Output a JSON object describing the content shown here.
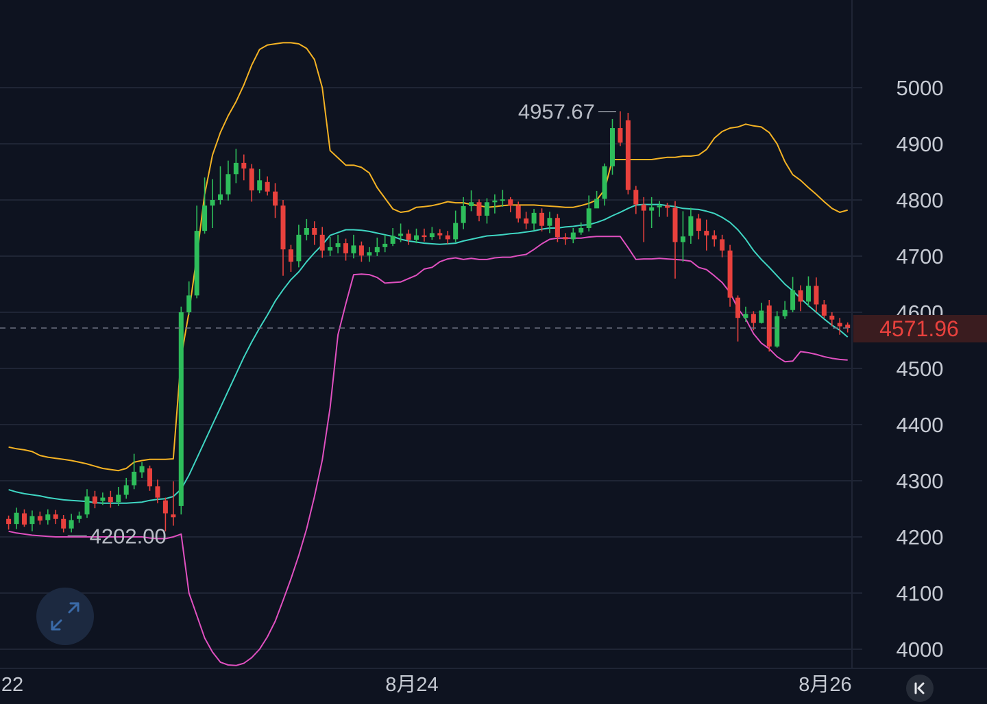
{
  "chart_data": {
    "type": "candlestick",
    "indicator": "Bollinger Bands",
    "y_ticks": [
      5000,
      4900,
      4800,
      4700,
      4600,
      4500,
      4400,
      4300,
      4200,
      4100,
      4000
    ],
    "ylim": [
      3965,
      5085
    ],
    "x_labels": [
      "22",
      "8月24",
      "8月26"
    ],
    "annotations": {
      "high": {
        "label": "4957.67",
        "value": 4957.67
      },
      "low": {
        "label": "4202.00",
        "value": 4202.0
      }
    },
    "last_price": {
      "label": "4571.96",
      "value": 4571.96
    },
    "grid": true,
    "colors": {
      "up": "#2ebd5b",
      "down": "#e8413d",
      "upper_band": "#f5b324",
      "middle_band": "#3fd6c3",
      "lower_band": "#e050c0",
      "grid": "#1f2535",
      "background": "#0e1320",
      "price_line": "#6b7080",
      "price_label_bg": "#3a1c1f"
    },
    "candles": [
      [
        4232,
        4223,
        4238,
        4213
      ],
      [
        4223,
        4243,
        4252,
        4214
      ],
      [
        4242,
        4222,
        4249,
        4218
      ],
      [
        4223,
        4237,
        4247,
        4210
      ],
      [
        4237,
        4229,
        4245,
        4222
      ],
      [
        4230,
        4240,
        4249,
        4222
      ],
      [
        4240,
        4232,
        4248,
        4223
      ],
      [
        4232,
        4215,
        4239,
        4208
      ],
      [
        4215,
        4230,
        4241,
        4208
      ],
      [
        4232,
        4238,
        4245,
        4225
      ],
      [
        4240,
        4272,
        4285,
        4234
      ],
      [
        4272,
        4259,
        4282,
        4251
      ],
      [
        4264,
        4270,
        4279,
        4257
      ],
      [
        4271,
        4262,
        4282,
        4252
      ],
      [
        4262,
        4275,
        4289,
        4255
      ],
      [
        4275,
        4292,
        4305,
        4268
      ],
      [
        4292,
        4316,
        4348,
        4285
      ],
      [
        4315,
        4326,
        4333,
        4305
      ],
      [
        4322,
        4290,
        4327,
        4282
      ],
      [
        4290,
        4270,
        4302,
        4260
      ],
      [
        4265,
        4242,
        4270,
        4210
      ],
      [
        4240,
        4235,
        4299,
        4220
      ],
      [
        4255,
        4600,
        4610,
        4240
      ],
      [
        4600,
        4630,
        4655,
        4595
      ],
      [
        4630,
        4745,
        4790,
        4625
      ],
      [
        4745,
        4790,
        4840,
        4740
      ],
      [
        4790,
        4800,
        4837,
        4750
      ],
      [
        4800,
        4810,
        4860,
        4792
      ],
      [
        4810,
        4846,
        4870,
        4799
      ],
      [
        4846,
        4866,
        4891,
        4830
      ],
      [
        4866,
        4856,
        4881,
        4835
      ],
      [
        4856,
        4817,
        4864,
        4797
      ],
      [
        4817,
        4835,
        4855,
        4812
      ],
      [
        4832,
        4815,
        4842,
        4808
      ],
      [
        4815,
        4790,
        4830,
        4768
      ],
      [
        4790,
        4712,
        4800,
        4665
      ],
      [
        4712,
        4690,
        4720,
        4672
      ],
      [
        4691,
        4738,
        4756,
        4680
      ],
      [
        4738,
        4750,
        4766,
        4728
      ],
      [
        4750,
        4738,
        4762,
        4720
      ],
      [
        4738,
        4710,
        4752,
        4697
      ],
      [
        4710,
        4716,
        4734,
        4700
      ],
      [
        4716,
        4723,
        4738,
        4705
      ],
      [
        4723,
        4705,
        4731,
        4692
      ],
      [
        4705,
        4719,
        4738,
        4696
      ],
      [
        4719,
        4701,
        4726,
        4690
      ],
      [
        4701,
        4707,
        4716,
        4690
      ],
      [
        4707,
        4716,
        4733,
        4700
      ],
      [
        4716,
        4722,
        4738,
        4707
      ],
      [
        4722,
        4736,
        4750,
        4718
      ],
      [
        4736,
        4740,
        4758,
        4725
      ],
      [
        4740,
        4729,
        4747,
        4720
      ],
      [
        4729,
        4737,
        4749,
        4723
      ],
      [
        4737,
        4734,
        4749,
        4726
      ],
      [
        4734,
        4741,
        4752,
        4729
      ],
      [
        4741,
        4737,
        4748,
        4730
      ],
      [
        4737,
        4730,
        4745,
        4722
      ],
      [
        4730,
        4759,
        4781,
        4725
      ],
      [
        4759,
        4789,
        4805,
        4748
      ],
      [
        4789,
        4796,
        4817,
        4780
      ],
      [
        4796,
        4772,
        4801,
        4762
      ],
      [
        4772,
        4796,
        4803,
        4758
      ],
      [
        4796,
        4799,
        4810,
        4776
      ],
      [
        4799,
        4801,
        4818,
        4788
      ],
      [
        4801,
        4790,
        4805,
        4778
      ],
      [
        4790,
        4767,
        4797,
        4760
      ],
      [
        4767,
        4758,
        4779,
        4748
      ],
      [
        4758,
        4777,
        4784,
        4746
      ],
      [
        4777,
        4754,
        4785,
        4744
      ],
      [
        4754,
        4768,
        4779,
        4741
      ],
      [
        4768,
        4734,
        4775,
        4725
      ],
      [
        4734,
        4730,
        4741,
        4720
      ],
      [
        4730,
        4742,
        4750,
        4723
      ],
      [
        4742,
        4750,
        4760,
        4738
      ],
      [
        4750,
        4785,
        4808,
        4744
      ],
      [
        4785,
        4802,
        4816,
        4786
      ],
      [
        4802,
        4860,
        4865,
        4790
      ],
      [
        4860,
        4928,
        4944,
        4845
      ],
      [
        4928,
        4902,
        4958,
        4896
      ],
      [
        4942,
        4818,
        4955,
        4810
      ],
      [
        4818,
        4792,
        4825,
        4775
      ],
      [
        4792,
        4781,
        4805,
        4725
      ],
      [
        4781,
        4787,
        4805,
        4750
      ],
      [
        4787,
        4790,
        4798,
        4770
      ],
      [
        4790,
        4786,
        4795,
        4770
      ],
      [
        4786,
        4725,
        4798,
        4660
      ],
      [
        4725,
        4735,
        4780,
        4690
      ],
      [
        4736,
        4771,
        4786,
        4722
      ],
      [
        4767,
        4745,
        4775,
        4730
      ],
      [
        4745,
        4737,
        4765,
        4710
      ],
      [
        4737,
        4730,
        4746,
        4717
      ],
      [
        4730,
        4710,
        4738,
        4698
      ],
      [
        4710,
        4626,
        4720,
        4610
      ],
      [
        4626,
        4590,
        4630,
        4548
      ],
      [
        4590,
        4597,
        4610,
        4583
      ],
      [
        4597,
        4581,
        4602,
        4568
      ],
      [
        4581,
        4603,
        4617,
        4580
      ],
      [
        4612,
        4539,
        4622,
        4530
      ],
      [
        4539,
        4593,
        4602,
        4537
      ],
      [
        4593,
        4604,
        4620,
        4588
      ],
      [
        4604,
        4639,
        4663,
        4600
      ],
      [
        4639,
        4619,
        4648,
        4602
      ],
      [
        4619,
        4647,
        4664,
        4610
      ],
      [
        4647,
        4614,
        4662,
        4600
      ],
      [
        4614,
        4594,
        4622,
        4590
      ],
      [
        4594,
        4587,
        4600,
        4575
      ],
      [
        4581,
        4575,
        4590,
        4560
      ],
      [
        4578,
        4571.96,
        4582,
        4564
      ]
    ],
    "upper_band": [
      4360,
      4357,
      4355,
      4352,
      4345,
      4342,
      4340,
      4338,
      4336,
      4333,
      4330,
      4326,
      4322,
      4320,
      4318,
      4322,
      4333,
      4336,
      4338,
      4338,
      4338,
      4339,
      4520,
      4600,
      4700,
      4810,
      4880,
      4920,
      4950,
      4975,
      5005,
      5040,
      5068,
      5076,
      5078,
      5080,
      5080,
      5078,
      5070,
      5050,
      5000,
      4888,
      4875,
      4862,
      4862,
      4858,
      4848,
      4822,
      4803,
      4784,
      4778,
      4780,
      4787,
      4788,
      4790,
      4793,
      4797,
      4795,
      4795,
      4792,
      4790,
      4787,
      4788,
      4790,
      4791,
      4791,
      4791,
      4791,
      4790,
      4789,
      4788,
      4787,
      4787,
      4790,
      4794,
      4800,
      4818,
      4872,
      4872,
      4872,
      4872,
      4872,
      4872,
      4874,
      4876,
      4876,
      4878,
      4878,
      4880,
      4890,
      4910,
      4922,
      4928,
      4930,
      4935,
      4932,
      4930,
      4920,
      4900,
      4868,
      4845,
      4835,
      4822,
      4810,
      4797,
      4785,
      4778,
      4782
    ],
    "middle_band": [
      4284,
      4280,
      4277,
      4275,
      4273,
      4270,
      4268,
      4266,
      4265,
      4264,
      4263,
      4261,
      4260,
      4260,
      4260,
      4260,
      4261,
      4262,
      4265,
      4267,
      4268,
      4272,
      4285,
      4310,
      4340,
      4370,
      4400,
      4430,
      4460,
      4490,
      4520,
      4547,
      4572,
      4595,
      4620,
      4640,
      4658,
      4672,
      4690,
      4706,
      4720,
      4737,
      4742,
      4747,
      4747,
      4746,
      4744,
      4741,
      4738,
      4735,
      4730,
      4727,
      4725,
      4723,
      4722,
      4721,
      4722,
      4723,
      4727,
      4730,
      4733,
      4736,
      4737,
      4738,
      4740,
      4741,
      4743,
      4745,
      4748,
      4750,
      4750,
      4752,
      4753,
      4755,
      4756,
      4760,
      4765,
      4772,
      4778,
      4785,
      4791,
      4792,
      4792,
      4792,
      4790,
      4788,
      4785,
      4784,
      4783,
      4780,
      4776,
      4769,
      4760,
      4747,
      4730,
      4710,
      4694,
      4680,
      4665,
      4650,
      4638,
      4625,
      4612,
      4600,
      4588,
      4577,
      4568,
      4556
    ],
    "lower_band": [
      4210,
      4207,
      4205,
      4203,
      4202,
      4201,
      4200,
      4200,
      4200,
      4200,
      4200,
      4200,
      4200,
      4200,
      4200,
      4200,
      4200,
      4200,
      4198,
      4197,
      4197,
      4200,
      4205,
      4100,
      4060,
      4020,
      3995,
      3977,
      3972,
      3971,
      3975,
      3985,
      4000,
      4022,
      4050,
      4087,
      4125,
      4167,
      4214,
      4272,
      4337,
      4430,
      4560,
      4615,
      4667,
      4668,
      4667,
      4662,
      4652,
      4653,
      4654,
      4660,
      4666,
      4677,
      4680,
      4690,
      4695,
      4697,
      4694,
      4696,
      4694,
      4694,
      4697,
      4698,
      4698,
      4701,
      4703,
      4712,
      4722,
      4730,
      4732,
      4732,
      4732,
      4732,
      4734,
      4735,
      4735,
      4735,
      4735,
      4715,
      4694,
      4695,
      4695,
      4696,
      4695,
      4694,
      4693,
      4691,
      4680,
      4676,
      4665,
      4653,
      4635,
      4607,
      4588,
      4562,
      4545,
      4535,
      4521,
      4512,
      4513,
      4530,
      4528,
      4525,
      4521,
      4518,
      4516,
      4515
    ]
  },
  "controls": {
    "expand_icon": "expand-arrows-icon",
    "back_icon": "jump-to-latest-icon"
  }
}
